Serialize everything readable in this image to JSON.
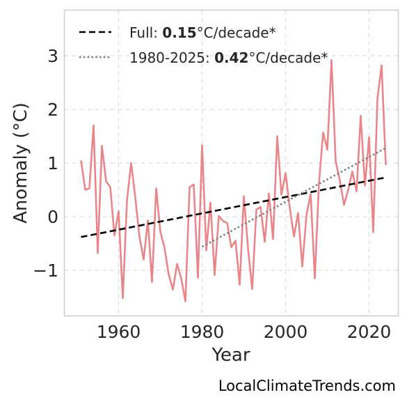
{
  "chart_data": {
    "type": "line",
    "xlabel": "Year",
    "ylabel": "Anomaly (°C)",
    "xlim": [
      1947,
      2027
    ],
    "ylim": [
      -1.85,
      3.85
    ],
    "x_ticks": [
      1960,
      1980,
      2000,
      2020
    ],
    "y_ticks": [
      -1,
      0,
      1,
      2,
      3
    ],
    "y_tick_labels": [
      "−1",
      "0",
      "1",
      "2",
      "3"
    ],
    "grid": true,
    "legend_position": "top-left",
    "series": [
      {
        "style": "solid",
        "color": "#e8868a",
        "x": [
          1951,
          1952,
          1953,
          1954,
          1955,
          1956,
          1957,
          1958,
          1959,
          1960,
          1961,
          1962,
          1963,
          1964,
          1965,
          1966,
          1967,
          1968,
          1969,
          1970,
          1971,
          1972,
          1973,
          1974,
          1975,
          1976,
          1977,
          1978,
          1979,
          1980,
          1981,
          1982,
          1983,
          1984,
          1985,
          1986,
          1987,
          1988,
          1989,
          1990,
          1991,
          1992,
          1993,
          1994,
          1995,
          1996,
          1997,
          1998,
          1999,
          2000,
          2001,
          2002,
          2003,
          2004,
          2005,
          2006,
          2007,
          2008,
          2009,
          2010,
          2011,
          2012,
          2013,
          2014,
          2015,
          2016,
          2017,
          2018,
          2019,
          2020,
          2021,
          2022,
          2023,
          2024
        ],
        "y": [
          1.05,
          0.5,
          0.53,
          1.7,
          -0.68,
          1.32,
          0.66,
          0.55,
          -0.35,
          0.1,
          -1.52,
          0.3,
          1.0,
          0.35,
          -0.38,
          -0.8,
          -0.07,
          -1.22,
          0.53,
          -0.28,
          -0.58,
          -1.08,
          -1.36,
          -0.88,
          -1.15,
          -1.58,
          0.55,
          0.6,
          -1.14,
          1.33,
          -0.63,
          0.26,
          -1.09,
          0.01,
          -0.08,
          -0.12,
          -0.57,
          -0.45,
          -1.27,
          0.38,
          -0.59,
          -1.35,
          0.13,
          0.18,
          -0.47,
          0.43,
          -0.42,
          1.5,
          0.41,
          0.81,
          0.16,
          -0.37,
          0.07,
          -0.93,
          0.03,
          0.42,
          -1.15,
          0.63,
          1.57,
          1.25,
          2.92,
          1.03,
          0.67,
          0.22,
          0.5,
          0.84,
          0.47,
          1.88,
          0.58,
          1.48,
          -0.29,
          2.2,
          2.82,
          0.96
        ]
      },
      {
        "name": "Full",
        "style": "dashed",
        "color": "#000000",
        "x": [
          1951,
          2024
        ],
        "y": [
          -0.38,
          0.73
        ]
      },
      {
        "name": "1980-2025",
        "style": "dotted",
        "color": "#808080",
        "x": [
          1980,
          2024
        ],
        "y": [
          -0.56,
          1.28
        ]
      }
    ],
    "legend": [
      {
        "prefix": "Full: ",
        "value": "0.15",
        "suffix": "°C/decade*"
      },
      {
        "prefix": "1980-2025: ",
        "value": "0.42",
        "suffix": "°C/decade*"
      }
    ]
  },
  "credit": "LocalClimateTrends.com"
}
